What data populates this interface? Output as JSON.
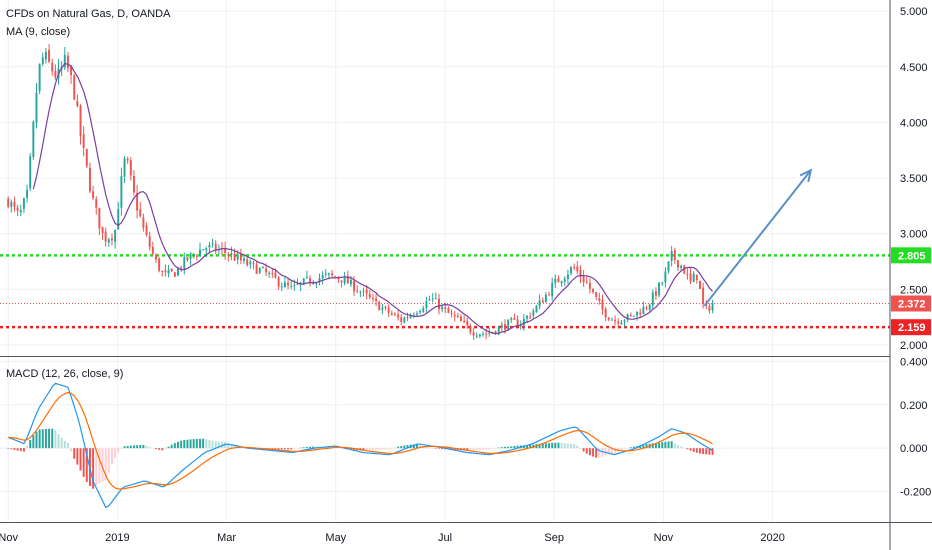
{
  "chart_data": {
    "type": "candlestick",
    "title": "CFDs on Natural Gas, D, OANDA",
    "indicator_label": "MA (9, close)",
    "macd_label": "MACD (12, 26, close, 9)",
    "price_axis": {
      "ticks": [
        "5.000",
        "4.500",
        "4.000",
        "3.500",
        "3.000",
        "2.500",
        "2.000"
      ],
      "tick_values": [
        5.0,
        4.5,
        4.0,
        3.5,
        3.0,
        2.5,
        2.0
      ],
      "range": [
        1.9,
        5.1
      ]
    },
    "macd_axis": {
      "ticks": [
        "0.400",
        "0.200",
        "0.000",
        "-0.200"
      ],
      "tick_values": [
        0.4,
        0.2,
        0.0,
        -0.2
      ],
      "range": [
        -0.34,
        0.42
      ]
    },
    "time_axis": {
      "labels": [
        "Nov",
        "2019",
        "Mar",
        "May",
        "Jul",
        "Sep",
        "Nov",
        "2020"
      ],
      "label_months": [
        0,
        2,
        4,
        6,
        8,
        10,
        12,
        14
      ],
      "month_range": [
        -0.15,
        16.15
      ]
    },
    "resistance_level": {
      "value": 2.805,
      "label": "2.805",
      "color": "#22dd22"
    },
    "support_level": {
      "value": 2.159,
      "label": "2.159",
      "color": "#ee2222"
    },
    "last_price": {
      "value": 2.372,
      "label": "2.372",
      "color": "#ef5350"
    },
    "projection_arrow": {
      "from": [
        12.75,
        2.35
      ],
      "to": [
        14.7,
        3.57
      ],
      "color": "#5a8fc8"
    },
    "colors": {
      "up": "#26a69a",
      "down": "#ef5350",
      "ma": "#7b3fa0",
      "macd": "#2196f3",
      "signal": "#ff6d00",
      "grid": "#eef0f3"
    },
    "price_anchors": [
      [
        0.0,
        3.3
      ],
      [
        0.2,
        3.15
      ],
      [
        0.35,
        3.35
      ],
      [
        0.55,
        4.45
      ],
      [
        0.65,
        4.6
      ],
      [
        0.9,
        4.4
      ],
      [
        1.05,
        4.55
      ],
      [
        1.2,
        4.3
      ],
      [
        1.35,
        3.8
      ],
      [
        1.55,
        3.3
      ],
      [
        1.75,
        2.95
      ],
      [
        1.95,
        3.0
      ],
      [
        2.05,
        3.4
      ],
      [
        2.15,
        3.7
      ],
      [
        2.3,
        3.35
      ],
      [
        2.5,
        3.0
      ],
      [
        2.7,
        2.75
      ],
      [
        2.85,
        2.62
      ],
      [
        3.05,
        2.65
      ],
      [
        3.3,
        2.78
      ],
      [
        3.6,
        2.88
      ],
      [
        3.9,
        2.85
      ],
      [
        4.1,
        2.8
      ],
      [
        4.4,
        2.72
      ],
      [
        4.7,
        2.65
      ],
      [
        5.0,
        2.55
      ],
      [
        5.2,
        2.5
      ],
      [
        5.5,
        2.58
      ],
      [
        5.85,
        2.62
      ],
      [
        6.1,
        2.6
      ],
      [
        6.4,
        2.5
      ],
      [
        6.7,
        2.38
      ],
      [
        7.0,
        2.28
      ],
      [
        7.2,
        2.22
      ],
      [
        7.5,
        2.32
      ],
      [
        7.75,
        2.42
      ],
      [
        8.0,
        2.3
      ],
      [
        8.25,
        2.22
      ],
      [
        8.5,
        2.12
      ],
      [
        8.75,
        2.1
      ],
      [
        9.0,
        2.15
      ],
      [
        9.2,
        2.2
      ],
      [
        9.4,
        2.2
      ],
      [
        9.7,
        2.35
      ],
      [
        10.0,
        2.55
      ],
      [
        10.35,
        2.7
      ],
      [
        10.6,
        2.55
      ],
      [
        10.9,
        2.3
      ],
      [
        11.1,
        2.22
      ],
      [
        11.4,
        2.25
      ],
      [
        11.7,
        2.35
      ],
      [
        12.0,
        2.58
      ],
      [
        12.15,
        2.8
      ],
      [
        12.35,
        2.7
      ],
      [
        12.5,
        2.55
      ],
      [
        12.6,
        2.65
      ],
      [
        12.75,
        2.3
      ],
      [
        12.9,
        2.37
      ]
    ],
    "macd_anchors": [
      [
        0.0,
        0.05
      ],
      [
        0.3,
        0.02
      ],
      [
        0.55,
        0.18
      ],
      [
        0.85,
        0.3
      ],
      [
        1.1,
        0.28
      ],
      [
        1.3,
        0.12
      ],
      [
        1.55,
        -0.15
      ],
      [
        1.8,
        -0.28
      ],
      [
        2.1,
        -0.18
      ],
      [
        2.5,
        -0.15
      ],
      [
        2.85,
        -0.18
      ],
      [
        3.2,
        -0.1
      ],
      [
        3.6,
        -0.02
      ],
      [
        4.0,
        0.02
      ],
      [
        4.4,
        0.0
      ],
      [
        4.8,
        -0.01
      ],
      [
        5.2,
        -0.02
      ],
      [
        5.6,
        0.0
      ],
      [
        6.0,
        0.01
      ],
      [
        6.5,
        -0.02
      ],
      [
        7.0,
        -0.03
      ],
      [
        7.5,
        0.02
      ],
      [
        8.0,
        0.0
      ],
      [
        8.4,
        -0.02
      ],
      [
        8.8,
        -0.03
      ],
      [
        9.2,
        -0.01
      ],
      [
        9.6,
        0.02
      ],
      [
        10.1,
        0.08
      ],
      [
        10.4,
        0.1
      ],
      [
        10.8,
        -0.01
      ],
      [
        11.1,
        -0.03
      ],
      [
        11.5,
        0.0
      ],
      [
        11.9,
        0.05
      ],
      [
        12.15,
        0.09
      ],
      [
        12.4,
        0.07
      ],
      [
        12.7,
        0.02
      ],
      [
        12.9,
        -0.01
      ]
    ]
  }
}
